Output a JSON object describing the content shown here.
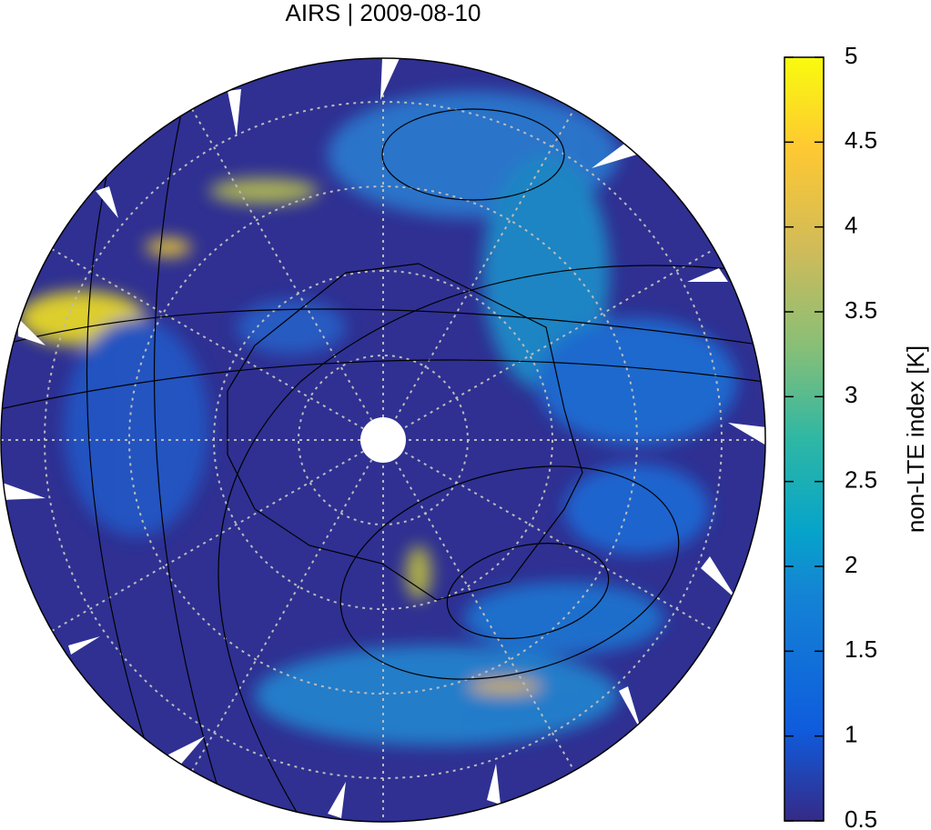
{
  "title": "AIRS | 2009-08-10",
  "colorbar": {
    "label": "non-LTE index [K]",
    "lim": [
      0.5,
      5
    ],
    "ticks": [
      0.5,
      1,
      1.5,
      2,
      2.5,
      3,
      3.5,
      4,
      4.5,
      5
    ]
  }
}
